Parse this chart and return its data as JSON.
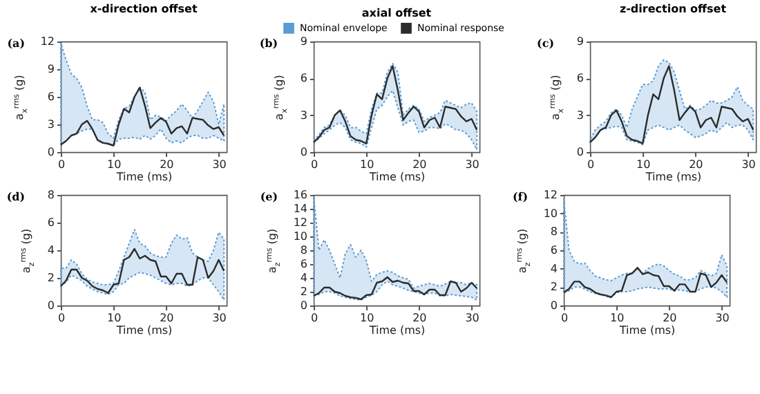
{
  "chart_data": [
    {
      "type": "line",
      "title": "x-direction offset",
      "xlabel": "Time (ms)",
      "ylabel": "a$_{x}$$^{rms}$ (g)",
      "annotations": [
        "(a)"
      ],
      "x": [
        0,
        1,
        2,
        3,
        4,
        5,
        6,
        7,
        8,
        9,
        10,
        11,
        12,
        13,
        14,
        15,
        16,
        17,
        18,
        19,
        20,
        21,
        22,
        23,
        24,
        25,
        26,
        27,
        28,
        29,
        30,
        31
      ],
      "xlim": [
        0,
        31.5
      ],
      "xticks": [
        0,
        10,
        20,
        30
      ],
      "ylim": [
        0,
        12
      ],
      "yticks": [
        0,
        3,
        6,
        9,
        12
      ],
      "series": [
        {
          "type": "line",
          "color": "#2b2b2b",
          "values": [
            0.8,
            1.2,
            1.8,
            2.0,
            3.0,
            3.4,
            2.5,
            1.3,
            1.0,
            0.9,
            0.7,
            3.0,
            4.7,
            4.3,
            6.0,
            7.0,
            5.0,
            2.6,
            3.2,
            3.7,
            3.3,
            2.0,
            2.6,
            2.8,
            2.0,
            3.7,
            3.6,
            3.5,
            2.9,
            2.5,
            2.7,
            1.8
          ],
          "lower": [
            0.8,
            1.2,
            1.8,
            2.0,
            2.3,
            2.5,
            2.5,
            1.3,
            1.0,
            0.9,
            0.7,
            1.4,
            1.5,
            1.5,
            1.6,
            1.4,
            1.8,
            1.4,
            1.8,
            2.5,
            1.5,
            1.0,
            1.2,
            1.0,
            1.5,
            1.8,
            1.8,
            1.5,
            1.5,
            1.8,
            1.5,
            1.2
          ],
          "upper": [
            11.8,
            10,
            8.5,
            8,
            7,
            5,
            3.5,
            3.5,
            3.2,
            2,
            1.5,
            3.5,
            4.7,
            5,
            6,
            7,
            6.5,
            3.5,
            4,
            3.8,
            3.4,
            4,
            4.5,
            5.2,
            4.5,
            3.7,
            4.5,
            5.5,
            6.5,
            5.5,
            3,
            5.2
          ]
        }
      ]
    },
    {
      "type": "line",
      "title": "axial offset",
      "xlabel": "Time (ms)",
      "ylabel": "a$_{x}$$^{rms}$ (g)",
      "annotations": [
        "(b)",
        "Nominal envelope"
      ],
      "legend": "top",
      "x": [
        0,
        1,
        2,
        3,
        4,
        5,
        6,
        7,
        8,
        9,
        10,
        11,
        12,
        13,
        14,
        15,
        16,
        17,
        18,
        19,
        20,
        21,
        22,
        23,
        24,
        25,
        26,
        27,
        28,
        29,
        30,
        31
      ],
      "xlim": [
        0,
        31.5
      ],
      "xticks": [
        0,
        10,
        20,
        30
      ],
      "ylim": [
        0,
        9
      ],
      "yticks": [
        0,
        3,
        6,
        9
      ],
      "series": [
        {
          "name": "Nominal response",
          "type": "line",
          "color": "#2b2b2b",
          "values": [
            0.8,
            1.2,
            1.8,
            2.0,
            3.0,
            3.4,
            2.5,
            1.3,
            1.0,
            0.9,
            0.7,
            3.0,
            4.7,
            4.3,
            6.0,
            7.0,
            5.0,
            2.6,
            3.2,
            3.7,
            3.3,
            2.0,
            2.6,
            2.8,
            2.0,
            3.7,
            3.6,
            3.5,
            2.9,
            2.5,
            2.7,
            1.8
          ],
          "lower": [
            0.8,
            1.1,
            1.5,
            1.8,
            2.2,
            2.4,
            2.0,
            1.0,
            0.8,
            0.7,
            0.4,
            2.0,
            3.5,
            3.8,
            4.5,
            5.0,
            3.6,
            2.2,
            2.5,
            2.6,
            1.6,
            1.7,
            2.0,
            2.0,
            1.9,
            2.3,
            2.1,
            1.8,
            1.8,
            1.5,
            1.0,
            0.2
          ],
          "upper": [
            0.9,
            1.4,
            2.0,
            2.2,
            3.0,
            3.4,
            3.0,
            2.0,
            2.0,
            1.7,
            1.5,
            3.5,
            4.8,
            4.8,
            6.5,
            7.2,
            6.5,
            3.0,
            3.5,
            3.8,
            3.5,
            2.5,
            2.8,
            3.0,
            3.2,
            4.2,
            4.0,
            3.8,
            3.6,
            3.9,
            4.0,
            3.3
          ]
        }
      ]
    },
    {
      "type": "line",
      "title": "z-direction offset",
      "xlabel": "Time (ms)",
      "ylabel": "a$_{x}$$^{rms}$ (g)",
      "annotations": [
        "(c)"
      ],
      "x": [
        0,
        1,
        2,
        3,
        4,
        5,
        6,
        7,
        8,
        9,
        10,
        11,
        12,
        13,
        14,
        15,
        16,
        17,
        18,
        19,
        20,
        21,
        22,
        23,
        24,
        25,
        26,
        27,
        28,
        29,
        30,
        31
      ],
      "xlim": [
        0,
        31.5
      ],
      "xticks": [
        0,
        10,
        20,
        30
      ],
      "ylim": [
        0,
        9
      ],
      "yticks": [
        0,
        3,
        6,
        9
      ],
      "series": [
        {
          "type": "line",
          "color": "#2b2b2b",
          "values": [
            0.8,
            1.2,
            1.8,
            2.0,
            3.0,
            3.4,
            2.5,
            1.3,
            1.0,
            0.9,
            0.7,
            3.0,
            4.7,
            4.3,
            6.0,
            7.0,
            5.0,
            2.6,
            3.2,
            3.7,
            3.3,
            2.0,
            2.6,
            2.8,
            2.0,
            3.7,
            3.6,
            3.5,
            2.9,
            2.5,
            2.7,
            1.8
          ],
          "lower": [
            0.8,
            1.2,
            1.8,
            1.9,
            2.0,
            2.1,
            2.0,
            1.0,
            0.9,
            0.8,
            0.6,
            1.8,
            2.0,
            2.2,
            2.0,
            1.8,
            2.0,
            2.2,
            1.8,
            1.5,
            1.2,
            1.3,
            1.5,
            1.8,
            1.6,
            2.0,
            2.4,
            2.0,
            2.2,
            2.2,
            1.8,
            1.0
          ],
          "upper": [
            1.0,
            1.8,
            2.2,
            2.5,
            3.2,
            3.5,
            3.0,
            2.0,
            3.5,
            4.5,
            5.5,
            5.5,
            5.8,
            7.0,
            7.5,
            7.3,
            6.5,
            5.0,
            3.5,
            3.8,
            3.4,
            3.5,
            3.8,
            4.2,
            4.0,
            4.0,
            4.2,
            4.5,
            5.3,
            4.2,
            3.8,
            3.5
          ]
        }
      ]
    },
    {
      "type": "line",
      "xlabel": "Time (ms)",
      "ylabel": "a$_{z}$$^{rms}$ (g)",
      "annotations": [
        "(d)"
      ],
      "x": [
        0,
        1,
        2,
        3,
        4,
        5,
        6,
        7,
        8,
        9,
        10,
        11,
        12,
        13,
        14,
        15,
        16,
        17,
        18,
        19,
        20,
        21,
        22,
        23,
        24,
        25,
        26,
        27,
        28,
        29,
        30,
        31
      ],
      "xlim": [
        0,
        31.5
      ],
      "xticks": [
        0,
        10,
        20,
        30
      ],
      "ylim": [
        0,
        8
      ],
      "yticks": [
        0,
        2,
        4,
        6,
        8
      ],
      "series": [
        {
          "type": "line",
          "color": "#2b2b2b",
          "values": [
            1.4,
            1.8,
            2.6,
            2.6,
            2.0,
            1.8,
            1.4,
            1.2,
            1.1,
            0.9,
            1.5,
            1.6,
            3.3,
            3.5,
            4.1,
            3.4,
            3.6,
            3.3,
            3.2,
            2.1,
            2.1,
            1.6,
            2.3,
            2.3,
            1.5,
            1.5,
            3.5,
            3.3,
            2.0,
            2.5,
            3.3,
            2.5
          ],
          "lower": [
            1.4,
            1.7,
            2.2,
            2.0,
            1.8,
            1.4,
            1.2,
            1.0,
            0.9,
            0.8,
            1.0,
            1.5,
            1.6,
            2.0,
            2.2,
            2.4,
            2.3,
            2.2,
            2.0,
            1.8,
            1.6,
            1.5,
            1.6,
            1.6,
            1.4,
            1.5,
            1.8,
            2.0,
            2.0,
            1.5,
            1.0,
            0.4
          ],
          "upper": [
            2.7,
            2.7,
            3.3,
            3.0,
            2.3,
            1.9,
            1.7,
            1.6,
            1.5,
            1.5,
            1.6,
            2.5,
            3.5,
            4.5,
            5.5,
            4.5,
            4.3,
            3.8,
            3.6,
            3.5,
            3.5,
            4.5,
            5.1,
            4.8,
            4.9,
            3.8,
            3.5,
            3.3,
            3.2,
            4.0,
            5.3,
            4.8
          ]
        }
      ]
    },
    {
      "type": "line",
      "xlabel": "Time (ms)",
      "ylabel": "a$_{z}$$^{rms}$ (g)",
      "annotations": [
        "(e)"
      ],
      "x": [
        0,
        1,
        2,
        3,
        4,
        5,
        6,
        7,
        8,
        9,
        10,
        11,
        12,
        13,
        14,
        15,
        16,
        17,
        18,
        19,
        20,
        21,
        22,
        23,
        24,
        25,
        26,
        27,
        28,
        29,
        30,
        31
      ],
      "xlim": [
        0,
        31.5
      ],
      "xticks": [
        0,
        10,
        20,
        30
      ],
      "ylim": [
        0,
        16
      ],
      "yticks": [
        0,
        2,
        4,
        6,
        8,
        10,
        12,
        14,
        16
      ],
      "series": [
        {
          "type": "line",
          "color": "#2b2b2b",
          "values": [
            1.4,
            1.8,
            2.6,
            2.6,
            2.0,
            1.8,
            1.4,
            1.2,
            1.1,
            0.9,
            1.5,
            1.6,
            3.3,
            3.5,
            4.1,
            3.4,
            3.6,
            3.3,
            3.2,
            2.1,
            2.1,
            1.6,
            2.3,
            2.3,
            1.5,
            1.5,
            3.5,
            3.3,
            2.0,
            2.5,
            3.3,
            2.5
          ],
          "lower": [
            1.4,
            1.6,
            2.0,
            2.0,
            1.8,
            1.4,
            1.2,
            1.0,
            0.9,
            0.8,
            1.2,
            1.5,
            2.0,
            3.0,
            3.5,
            3.0,
            2.8,
            2.5,
            2.2,
            2.0,
            1.8,
            1.6,
            1.8,
            1.8,
            1.4,
            1.4,
            1.6,
            1.5,
            1.4,
            1.3,
            1.2,
            0.8
          ],
          "upper": [
            15.8,
            8,
            9.5,
            8,
            6,
            4,
            7.5,
            8.8,
            7,
            8,
            6.5,
            3.5,
            4.5,
            4.8,
            5,
            4.8,
            4.3,
            4,
            3.8,
            2.5,
            2.8,
            3.0,
            3.2,
            3.0,
            2.8,
            3.1,
            3.5,
            3.3,
            3.3,
            3.0,
            3.3,
            3.0
          ]
        }
      ]
    },
    {
      "type": "line",
      "xlabel": "Time (ms)",
      "ylabel": "a$_{z}$$^{rms}$ (g)",
      "annotations": [
        "(f)"
      ],
      "x": [
        0,
        1,
        2,
        3,
        4,
        5,
        6,
        7,
        8,
        9,
        10,
        11,
        12,
        13,
        14,
        15,
        16,
        17,
        18,
        19,
        20,
        21,
        22,
        23,
        24,
        25,
        26,
        27,
        28,
        29,
        30,
        31
      ],
      "xlim": [
        0,
        31.5
      ],
      "xticks": [
        0,
        10,
        20,
        30
      ],
      "ylim": [
        0,
        12
      ],
      "yticks": [
        0,
        2,
        4,
        6,
        8,
        10,
        12
      ],
      "series": [
        {
          "type": "line",
          "color": "#2b2b2b",
          "values": [
            1.4,
            1.8,
            2.6,
            2.6,
            2.0,
            1.8,
            1.4,
            1.2,
            1.1,
            0.9,
            1.5,
            1.6,
            3.3,
            3.5,
            4.1,
            3.4,
            3.6,
            3.3,
            3.2,
            2.1,
            2.1,
            1.6,
            2.3,
            2.3,
            1.5,
            1.5,
            3.5,
            3.3,
            2.0,
            2.5,
            3.3,
            2.5
          ],
          "lower": [
            1.4,
            1.6,
            2.0,
            2.0,
            1.8,
            1.5,
            1.3,
            1.2,
            1.0,
            0.9,
            1.4,
            1.5,
            1.5,
            1.6,
            1.8,
            1.9,
            2.0,
            1.9,
            1.8,
            1.8,
            1.8,
            1.6,
            1.7,
            1.6,
            1.5,
            1.5,
            1.8,
            2.0,
            2.0,
            1.9,
            1.5,
            0.9
          ],
          "upper": [
            11.5,
            6,
            4.8,
            4.5,
            4.6,
            3.8,
            3.2,
            3.0,
            2.8,
            2.7,
            3.0,
            3.3,
            3.5,
            3.5,
            4.1,
            3.5,
            4.0,
            4.3,
            4.5,
            4.3,
            3.8,
            3.4,
            3.2,
            2.8,
            2.8,
            3.0,
            3.8,
            3.5,
            3.2,
            3.5,
            5.5,
            4.3
          ]
        }
      ]
    }
  ]
}
